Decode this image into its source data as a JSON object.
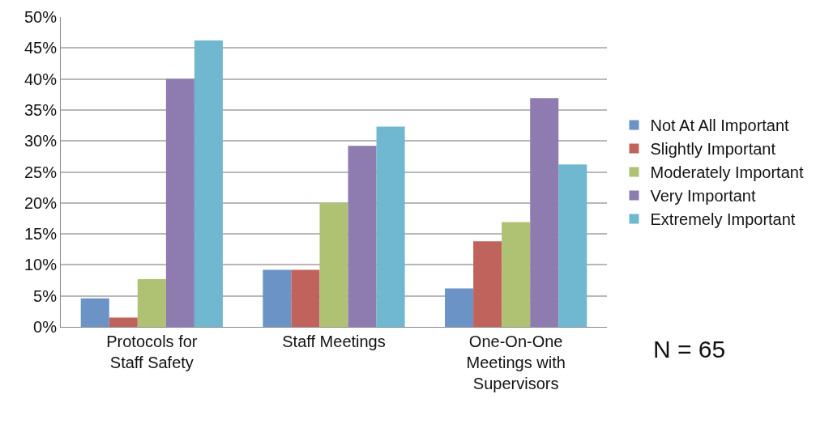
{
  "chart_data": {
    "type": "bar",
    "categories": [
      "Protocols for Staff Safety",
      "Staff Meetings",
      "One-On-One Meetings with Supervisors"
    ],
    "series": [
      {
        "name": "Not At All Important",
        "color": "#6b93c5",
        "values": [
          4.6,
          9.2,
          6.2
        ]
      },
      {
        "name": "Slightly Important",
        "color": "#c0635c",
        "values": [
          1.5,
          9.2,
          13.8
        ]
      },
      {
        "name": "Moderately Important",
        "color": "#afc273",
        "values": [
          7.7,
          20.0,
          16.9
        ]
      },
      {
        "name": "Very Important",
        "color": "#8e7cb0",
        "values": [
          40.0,
          29.2,
          36.9
        ]
      },
      {
        "name": "Extremely Important",
        "color": "#6fb8cf",
        "values": [
          46.2,
          32.3,
          26.2
        ]
      }
    ],
    "ylim": [
      0,
      50
    ],
    "yticks": [
      {
        "value": 0,
        "label": "0%"
      },
      {
        "value": 5,
        "label": "5%"
      },
      {
        "value": 10,
        "label": "10%"
      },
      {
        "value": 15,
        "label": "15%"
      },
      {
        "value": 20,
        "label": "20%"
      },
      {
        "value": 25,
        "label": "25%"
      },
      {
        "value": 30,
        "label": "30%"
      },
      {
        "value": 35,
        "label": "35%"
      },
      {
        "value": 40,
        "label": "40%"
      },
      {
        "value": 45,
        "label": "45%"
      },
      {
        "value": 50,
        "label": "50%"
      }
    ],
    "grid": "y",
    "legend": "right",
    "annotations": [
      "N = 65"
    ]
  }
}
